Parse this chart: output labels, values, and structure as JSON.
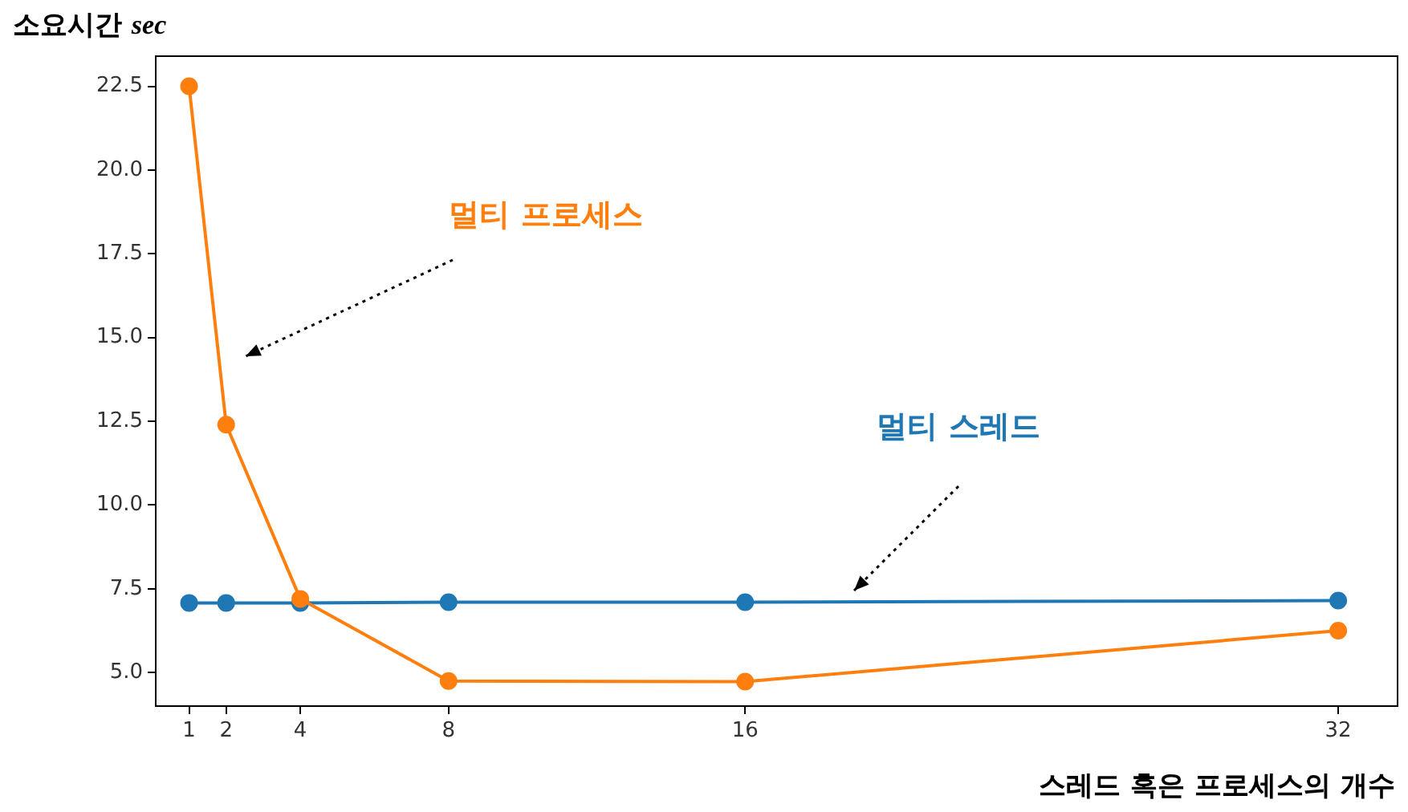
{
  "chart_data": {
    "type": "line",
    "xlabel": "스레드 혹은 프로세스의 개수",
    "ylabel": "소요시간 sec",
    "x": [
      1,
      2,
      4,
      8,
      16,
      32
    ],
    "series": [
      {
        "color": "#ff7f0e",
        "values": [
          22.5,
          12.4,
          7.2,
          4.75,
          4.73,
          6.25
        ]
      },
      {
        "color": "#1f77b4",
        "values": [
          7.08,
          7.08,
          7.08,
          7.1,
          7.1,
          7.15
        ]
      }
    ],
    "xlim": [
      0.1,
      33.6
    ],
    "xticks": [
      1,
      2,
      4,
      8,
      16,
      32
    ],
    "ylim": [
      4.0,
      23.4
    ],
    "yticks": [
      {
        "value": 5,
        "label": "5.0"
      },
      {
        "value": 7.5,
        "label": "7.5"
      },
      {
        "value": 10,
        "label": "10.0"
      },
      {
        "value": 12.5,
        "label": "12.5"
      },
      {
        "value": 15,
        "label": "15.0"
      },
      {
        "value": 17.5,
        "label": "17.5"
      },
      {
        "value": 20,
        "label": "20.0"
      },
      {
        "value": 22.5,
        "label": "22.5"
      }
    ],
    "grid": false,
    "legend": false,
    "marker": "circle",
    "line_style": "solid",
    "annotations": [
      "멀티 프로세스",
      "멀티 스레드"
    ]
  }
}
